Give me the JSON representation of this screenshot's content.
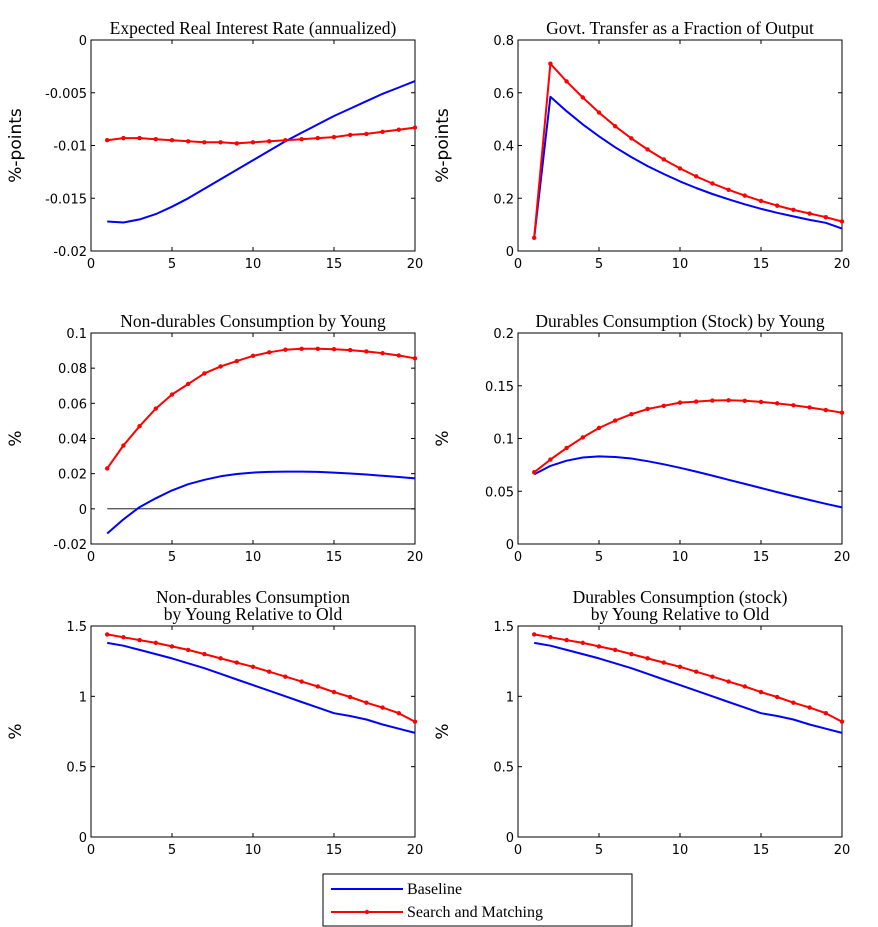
{
  "colors": {
    "baseline": "#0000ff",
    "search_matching": "#ff0000",
    "zero_line": "#000000"
  },
  "legend": {
    "placement": "bottom-center",
    "entries": [
      "Baseline",
      "Search and Matching"
    ]
  },
  "chart_data": [
    {
      "type": "line",
      "title": [
        "Expected Real Interest Rate (annualized)"
      ],
      "xlabel": "",
      "ylabel": "%-points",
      "xlim": [
        0,
        20
      ],
      "ylim": [
        -0.02,
        0
      ],
      "x_ticks": [
        0,
        5,
        10,
        15,
        20
      ],
      "x_tick_labels": [
        "0",
        "5",
        "10",
        "15",
        "20"
      ],
      "y_ticks": [
        -0.02,
        -0.015,
        -0.01,
        -0.005,
        0
      ],
      "y_tick_labels": [
        "-0.02",
        "-0.015",
        "-0.01",
        "-0.005",
        "0"
      ],
      "zero_line": false,
      "x": [
        1,
        2,
        3,
        4,
        5,
        6,
        7,
        8,
        9,
        10,
        11,
        12,
        13,
        14,
        15,
        16,
        17,
        18,
        19,
        20
      ],
      "series": [
        {
          "name": "Baseline",
          "values": [
            -0.0172,
            -0.0173,
            -0.017,
            -0.0165,
            -0.0158,
            -0.015,
            -0.0141,
            -0.0132,
            -0.0123,
            -0.0114,
            -0.0105,
            -0.0096,
            -0.0088,
            -0.008,
            -0.0072,
            -0.0065,
            -0.0058,
            -0.0051,
            -0.0045,
            -0.0039
          ]
        },
        {
          "name": "Search and Matching",
          "values": [
            -0.0095,
            -0.0093,
            -0.0093,
            -0.0094,
            -0.0095,
            -0.0096,
            -0.0097,
            -0.0097,
            -0.0098,
            -0.0097,
            -0.0096,
            -0.0095,
            -0.0094,
            -0.0093,
            -0.0092,
            -0.009,
            -0.0089,
            -0.0087,
            -0.0085,
            -0.0083
          ]
        }
      ]
    },
    {
      "type": "line",
      "title": [
        "Govt. Transfer as a Fraction of Output"
      ],
      "xlabel": "",
      "ylabel": "%-points",
      "xlim": [
        0,
        20
      ],
      "ylim": [
        0,
        0.8
      ],
      "x_ticks": [
        0,
        5,
        10,
        15,
        20
      ],
      "x_tick_labels": [
        "0",
        "5",
        "10",
        "15",
        "20"
      ],
      "y_ticks": [
        0,
        0.2,
        0.4,
        0.6,
        0.8
      ],
      "y_tick_labels": [
        "0",
        "0.2",
        "0.4",
        "0.6",
        "0.8"
      ],
      "zero_line": "dashed",
      "x": [
        1,
        2,
        3,
        4,
        5,
        6,
        7,
        8,
        9,
        10,
        11,
        12,
        13,
        14,
        15,
        16,
        17,
        18,
        19,
        20
      ],
      "series": [
        {
          "name": "Baseline",
          "values": [
            0.05,
            0.585,
            0.53,
            0.48,
            0.435,
            0.393,
            0.356,
            0.322,
            0.292,
            0.264,
            0.239,
            0.216,
            0.196,
            0.177,
            0.16,
            0.145,
            0.131,
            0.118,
            0.107,
            0.085
          ]
        },
        {
          "name": "Search and Matching",
          "values": [
            0.05,
            0.71,
            0.643,
            0.582,
            0.525,
            0.473,
            0.427,
            0.385,
            0.347,
            0.313,
            0.283,
            0.256,
            0.232,
            0.21,
            0.19,
            0.172,
            0.156,
            0.142,
            0.128,
            0.112
          ]
        }
      ]
    },
    {
      "type": "line",
      "title": [
        "Non-durables Consumption by Young"
      ],
      "xlabel": "",
      "ylabel": "%",
      "xlim": [
        0,
        20
      ],
      "ylim": [
        -0.02,
        0.1
      ],
      "x_ticks": [
        0,
        5,
        10,
        15,
        20
      ],
      "x_tick_labels": [
        "0",
        "5",
        "10",
        "15",
        "20"
      ],
      "y_ticks": [
        -0.02,
        0,
        0.02,
        0.04,
        0.06,
        0.08,
        0.1
      ],
      "y_tick_labels": [
        "-0.02",
        "0",
        "0.02",
        "0.04",
        "0.06",
        "0.08",
        "0.1"
      ],
      "zero_line": "solid",
      "x": [
        1,
        2,
        3,
        4,
        5,
        6,
        7,
        8,
        9,
        10,
        11,
        12,
        13,
        14,
        15,
        16,
        17,
        18,
        19,
        20
      ],
      "series": [
        {
          "name": "Baseline",
          "values": [
            -0.014,
            -0.006,
            0.001,
            0.006,
            0.0105,
            0.014,
            0.0165,
            0.0185,
            0.0198,
            0.0206,
            0.021,
            0.0212,
            0.0212,
            0.021,
            0.0206,
            0.0201,
            0.0195,
            0.0188,
            0.0181,
            0.0173
          ]
        },
        {
          "name": "Search and Matching",
          "values": [
            0.023,
            0.036,
            0.047,
            0.057,
            0.065,
            0.071,
            0.077,
            0.081,
            0.084,
            0.087,
            0.089,
            0.0905,
            0.091,
            0.091,
            0.0908,
            0.0903,
            0.0895,
            0.0885,
            0.0872,
            0.0856
          ]
        }
      ]
    },
    {
      "type": "line",
      "title": [
        "Durables Consumption (Stock) by Young"
      ],
      "xlabel": "",
      "ylabel": "%",
      "xlim": [
        0,
        20
      ],
      "ylim": [
        0,
        0.2
      ],
      "x_ticks": [
        0,
        5,
        10,
        15,
        20
      ],
      "x_tick_labels": [
        "0",
        "5",
        "10",
        "15",
        "20"
      ],
      "y_ticks": [
        0,
        0.05,
        0.1,
        0.15,
        0.2
      ],
      "y_tick_labels": [
        "0",
        "0.05",
        "0.1",
        "0.15",
        "0.2"
      ],
      "zero_line": "dashed",
      "x": [
        1,
        2,
        3,
        4,
        5,
        6,
        7,
        8,
        9,
        10,
        11,
        12,
        13,
        14,
        15,
        16,
        17,
        18,
        19,
        20
      ],
      "series": [
        {
          "name": "Baseline",
          "values": [
            0.066,
            0.074,
            0.079,
            0.082,
            0.083,
            0.0825,
            0.081,
            0.0785,
            0.0755,
            0.0722,
            0.0686,
            0.0648,
            0.0609,
            0.057,
            0.0531,
            0.0492,
            0.0454,
            0.0417,
            0.0381,
            0.0347
          ]
        },
        {
          "name": "Search and Matching",
          "values": [
            0.068,
            0.08,
            0.091,
            0.101,
            0.11,
            0.117,
            0.123,
            0.128,
            0.131,
            0.134,
            0.135,
            0.136,
            0.1362,
            0.1357,
            0.1347,
            0.1333,
            0.1315,
            0.1294,
            0.127,
            0.1245
          ]
        }
      ]
    },
    {
      "type": "line",
      "title": [
        "Non-durables Consumption",
        "by Young Relative to Old"
      ],
      "xlabel": "",
      "ylabel": "%",
      "xlim": [
        0,
        20
      ],
      "ylim": [
        0,
        1.5
      ],
      "x_ticks": [
        0,
        5,
        10,
        15,
        20
      ],
      "x_tick_labels": [
        "0",
        "5",
        "10",
        "15",
        "20"
      ],
      "y_ticks": [
        0,
        0.5,
        1,
        1.5
      ],
      "y_tick_labels": [
        "0",
        "0.5",
        "1",
        "1.5"
      ],
      "zero_line": false,
      "x": [
        1,
        2,
        3,
        4,
        5,
        6,
        7,
        8,
        9,
        10,
        11,
        12,
        13,
        14,
        15,
        16,
        17,
        18,
        19,
        20
      ],
      "series": [
        {
          "name": "Baseline",
          "values": [
            1.38,
            1.36,
            1.33,
            1.3,
            1.27,
            1.235,
            1.2,
            1.16,
            1.12,
            1.08,
            1.04,
            1.0,
            0.96,
            0.92,
            0.88,
            0.86,
            0.835,
            0.8,
            0.77,
            0.74
          ]
        },
        {
          "name": "Search and Matching",
          "values": [
            1.44,
            1.42,
            1.4,
            1.38,
            1.355,
            1.33,
            1.3,
            1.27,
            1.24,
            1.21,
            1.175,
            1.14,
            1.105,
            1.07,
            1.03,
            0.995,
            0.955,
            0.92,
            0.88,
            0.82
          ]
        }
      ]
    },
    {
      "type": "line",
      "title": [
        "Durables Consumption (stock)",
        "by Young Relative to Old"
      ],
      "xlabel": "",
      "ylabel": "%",
      "xlim": [
        0,
        20
      ],
      "ylim": [
        0,
        1.5
      ],
      "x_ticks": [
        0,
        5,
        10,
        15,
        20
      ],
      "x_tick_labels": [
        "0",
        "5",
        "10",
        "15",
        "20"
      ],
      "y_ticks": [
        0,
        0.5,
        1,
        1.5
      ],
      "y_tick_labels": [
        "0",
        "0.5",
        "1",
        "1.5"
      ],
      "zero_line": false,
      "x": [
        1,
        2,
        3,
        4,
        5,
        6,
        7,
        8,
        9,
        10,
        11,
        12,
        13,
        14,
        15,
        16,
        17,
        18,
        19,
        20
      ],
      "series": [
        {
          "name": "Baseline",
          "values": [
            1.38,
            1.36,
            1.33,
            1.3,
            1.27,
            1.235,
            1.2,
            1.16,
            1.12,
            1.08,
            1.04,
            1.0,
            0.96,
            0.92,
            0.88,
            0.86,
            0.835,
            0.8,
            0.77,
            0.74
          ]
        },
        {
          "name": "Search and Matching",
          "values": [
            1.44,
            1.42,
            1.4,
            1.38,
            1.355,
            1.33,
            1.3,
            1.27,
            1.24,
            1.21,
            1.175,
            1.14,
            1.105,
            1.07,
            1.03,
            0.995,
            0.955,
            0.92,
            0.88,
            0.82
          ]
        }
      ]
    }
  ]
}
